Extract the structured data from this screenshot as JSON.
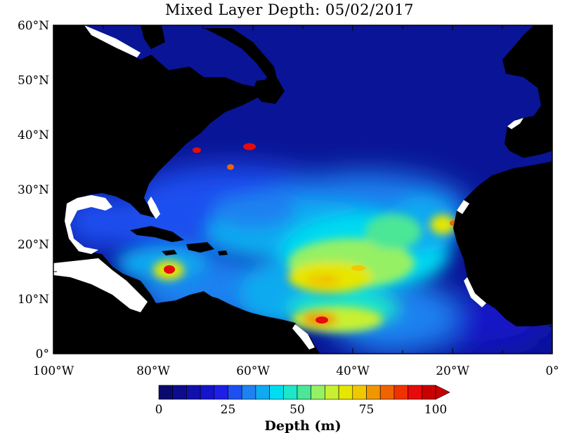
{
  "title": "Mixed Layer Depth: 05/02/2017",
  "map": {
    "lon_min": -100,
    "lon_max": 0,
    "lat_min": 0,
    "lat_max": 60,
    "ocean_base_color": "#0a1496",
    "land_color": "#000000",
    "no_data_color": "#ffffff"
  },
  "axes": {
    "lat_ticks": [
      {
        "value": 60,
        "label": "60°N"
      },
      {
        "value": 50,
        "label": "50°N"
      },
      {
        "value": 40,
        "label": "40°N"
      },
      {
        "value": 30,
        "label": "30°N"
      },
      {
        "value": 20,
        "label": "20°N"
      },
      {
        "value": 10,
        "label": "10°N"
      },
      {
        "value": 0,
        "label": "0°"
      }
    ],
    "lon_ticks": [
      {
        "value": -100,
        "label": "100°W"
      },
      {
        "value": -80,
        "label": "80°W"
      },
      {
        "value": -60,
        "label": "60°W"
      },
      {
        "value": -40,
        "label": "40°W"
      },
      {
        "value": -20,
        "label": "20°W"
      },
      {
        "value": 0,
        "label": "0°"
      }
    ]
  },
  "colorbar": {
    "title": "Depth (m)",
    "min": 0,
    "max": 100,
    "colors": [
      "#0a0a6e",
      "#0c0c8c",
      "#1010aa",
      "#1414c8",
      "#1e1ee6",
      "#1e50f0",
      "#1e82f0",
      "#10aaf0",
      "#00dcf0",
      "#1ee6c8",
      "#4be696",
      "#96f064",
      "#c8f032",
      "#e6e600",
      "#f0c800",
      "#f09600",
      "#f06400",
      "#f03200",
      "#e60a0a",
      "#c80000"
    ],
    "labels": [
      {
        "value": 0,
        "label": "0"
      },
      {
        "value": 25,
        "label": "25"
      },
      {
        "value": 50,
        "label": "50"
      },
      {
        "value": 75,
        "label": "75"
      },
      {
        "value": 100,
        "label": "100"
      }
    ]
  }
}
